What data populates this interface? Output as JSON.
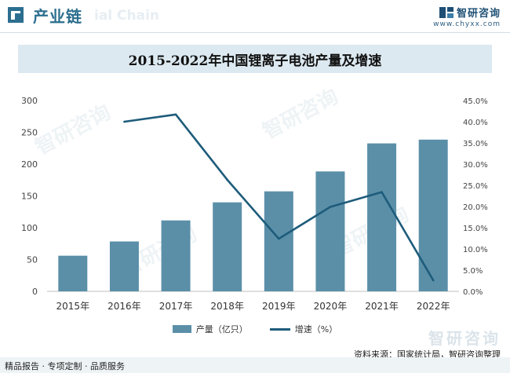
{
  "header": {
    "title": "产业链",
    "ghost_text": "ial Chain",
    "brand_name": "智研咨询",
    "brand_url": "www.chyxx.com"
  },
  "watermark": {
    "text": "智研咨询"
  },
  "chart_data": {
    "type": "bar",
    "title": "2015-2022年中国锂离子电池产量及增速",
    "categories": [
      "2015年",
      "2016年",
      "2017年",
      "2018年",
      "2019年",
      "2020年",
      "2021年",
      "2022年"
    ],
    "series": [
      {
        "name": "产量（亿只）",
        "type": "bar",
        "axis": "left",
        "values": [
          56,
          78.4,
          111.5,
          139.9,
          157.2,
          188.5,
          232.6,
          238.5
        ]
      },
      {
        "name": "增速（%）",
        "type": "line",
        "axis": "right",
        "values": [
          null,
          40.0,
          41.7,
          26.3,
          12.4,
          19.9,
          23.4,
          2.6
        ]
      }
    ],
    "y_left": {
      "min": 0,
      "max": 300,
      "ticks": [
        "0",
        "50",
        "100",
        "150",
        "200",
        "250",
        "300"
      ]
    },
    "y_right": {
      "min": 0,
      "max": 45,
      "ticks": [
        "0.0%",
        "5.0%",
        "10.0%",
        "15.0%",
        "20.0%",
        "25.0%",
        "30.0%",
        "35.0%",
        "40.0%",
        "45.0%"
      ]
    },
    "grid": false,
    "legend_position": "bottom-center",
    "colors": {
      "bar": "#5b8fa8",
      "line": "#1e5c7b"
    }
  },
  "footer": {
    "left": "精品报告 · 专项定制 · 品质服务",
    "source": "资料来源：国家统计局，智研咨询整理"
  }
}
